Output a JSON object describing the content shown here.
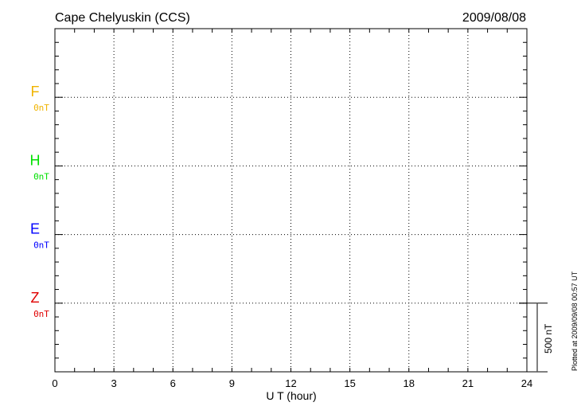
{
  "chart_data": {
    "type": "line",
    "title": "Cape Chelyuskin (CCS)",
    "date": "2009/08/08",
    "xlabel": "U T (hour)",
    "xlim": [
      0,
      24
    ],
    "xticks": [
      "0",
      "3",
      "6",
      "9",
      "12",
      "15",
      "18",
      "21",
      "24"
    ],
    "grid": true,
    "series": [
      {
        "name": "F",
        "baseline_label": "0nT",
        "color": "#f0b400",
        "values": []
      },
      {
        "name": "H",
        "baseline_label": "0nT",
        "color": "#00e000",
        "values": []
      },
      {
        "name": "E",
        "baseline_label": "0nT",
        "color": "#0000ff",
        "values": []
      },
      {
        "name": "Z",
        "baseline_label": "0nT",
        "color": "#e00000",
        "values": []
      }
    ],
    "scale_bar": "500 nT",
    "footer": "Plotted at 2009/09/08 00:57 UT"
  }
}
